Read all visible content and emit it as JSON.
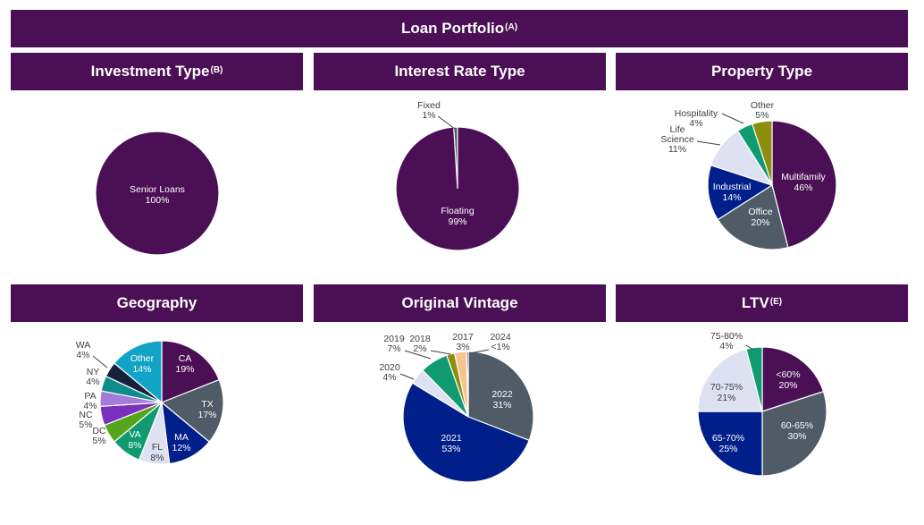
{
  "header": {
    "title": "Loan Portfolio",
    "title_sup": "(A)"
  },
  "charts": {
    "investment_type": {
      "title": "Investment Type",
      "title_sup": "(B)"
    },
    "interest_rate_type": {
      "title": "Interest Rate Type",
      "title_sup": ""
    },
    "property_type": {
      "title": "Property Type",
      "title_sup": ""
    },
    "geography": {
      "title": "Geography",
      "title_sup": ""
    },
    "original_vintage": {
      "title": "Original Vintage",
      "title_sup": ""
    },
    "ltv": {
      "title": "LTV",
      "title_sup": "(E)"
    }
  },
  "chart_data": [
    {
      "id": "investment_type",
      "type": "pie",
      "title": "Investment Type",
      "slices": [
        {
          "label": "Senior Loans",
          "value": 100,
          "display": "100%",
          "color": "#4b0f55"
        }
      ]
    },
    {
      "id": "interest_rate_type",
      "type": "pie",
      "title": "Interest Rate Type",
      "slices": [
        {
          "label": "Fixed",
          "value": 1,
          "display": "1%",
          "color": "#4f5b66"
        },
        {
          "label": "Floating",
          "value": 99,
          "display": "99%",
          "color": "#4b0f55"
        }
      ]
    },
    {
      "id": "property_type",
      "type": "pie",
      "title": "Property Type",
      "slices": [
        {
          "label": "Multifamily",
          "value": 46,
          "display": "46%",
          "color": "#4b0f55"
        },
        {
          "label": "Office",
          "value": 20,
          "display": "20%",
          "color": "#4f5b66"
        },
        {
          "label": "Industrial",
          "value": 14,
          "display": "14%",
          "color": "#001f8a"
        },
        {
          "label": "Life Science",
          "value": 11,
          "display": "11%",
          "color": "#dde1f2"
        },
        {
          "label": "Hospitality",
          "value": 4,
          "display": "4%",
          "color": "#0f9a70"
        },
        {
          "label": "Other",
          "value": 5,
          "display": "5%",
          "color": "#8c8f0e"
        }
      ]
    },
    {
      "id": "geography",
      "type": "pie",
      "title": "Geography",
      "slices": [
        {
          "label": "CA",
          "value": 19,
          "display": "19%",
          "color": "#4b0f55"
        },
        {
          "label": "TX",
          "value": 17,
          "display": "17%",
          "color": "#4f5b66"
        },
        {
          "label": "MA",
          "value": 12,
          "display": "12%",
          "color": "#001f8a"
        },
        {
          "label": "FL",
          "value": 8,
          "display": "8%",
          "color": "#dde1f2"
        },
        {
          "label": "VA",
          "value": 8,
          "display": "8%",
          "color": "#0f9a70"
        },
        {
          "label": "DC",
          "value": 5,
          "display": "5%",
          "color": "#55a51c"
        },
        {
          "label": "NC",
          "value": 5,
          "display": "5%",
          "color": "#7b2fbd"
        },
        {
          "label": "PA",
          "value": 4,
          "display": "4%",
          "color": "#a47bdd"
        },
        {
          "label": "NY",
          "value": 4,
          "display": "4%",
          "color": "#0c8c8c"
        },
        {
          "label": "WA",
          "value": 4,
          "display": "4%",
          "color": "#15213d"
        },
        {
          "label": "Other",
          "value": 14,
          "display": "14%",
          "color": "#12a4c6"
        }
      ]
    },
    {
      "id": "original_vintage",
      "type": "pie",
      "title": "Original Vintage",
      "slices": [
        {
          "label": "2022",
          "value": 31,
          "display": "31%",
          "color": "#4f5b66"
        },
        {
          "label": "2021",
          "value": 53,
          "display": "53%",
          "color": "#001f8a"
        },
        {
          "label": "2020",
          "value": 4,
          "display": "4%",
          "color": "#dde1f2"
        },
        {
          "label": "2019",
          "value": 7,
          "display": "7%",
          "color": "#0f9a70"
        },
        {
          "label": "2018",
          "value": 2,
          "display": "2%",
          "color": "#8c8f0e"
        },
        {
          "label": "2017",
          "value": 3,
          "display": "3%",
          "color": "#f6c48e"
        },
        {
          "label": "2024",
          "value": 0.4,
          "display": "<1%",
          "color": "#4b0f55"
        }
      ]
    },
    {
      "id": "ltv",
      "type": "pie",
      "title": "LTV",
      "slices": [
        {
          "label": "<60%",
          "value": 20,
          "display": "20%",
          "color": "#4b0f55"
        },
        {
          "label": "60-65%",
          "value": 30,
          "display": "30%",
          "color": "#4f5b66"
        },
        {
          "label": "65-70%",
          "value": 25,
          "display": "25%",
          "color": "#001f8a"
        },
        {
          "label": "70-75%",
          "value": 21,
          "display": "21%",
          "color": "#dde1f2"
        },
        {
          "label": "75-80%",
          "value": 4,
          "display": "4%",
          "color": "#0f9a70"
        }
      ]
    }
  ]
}
